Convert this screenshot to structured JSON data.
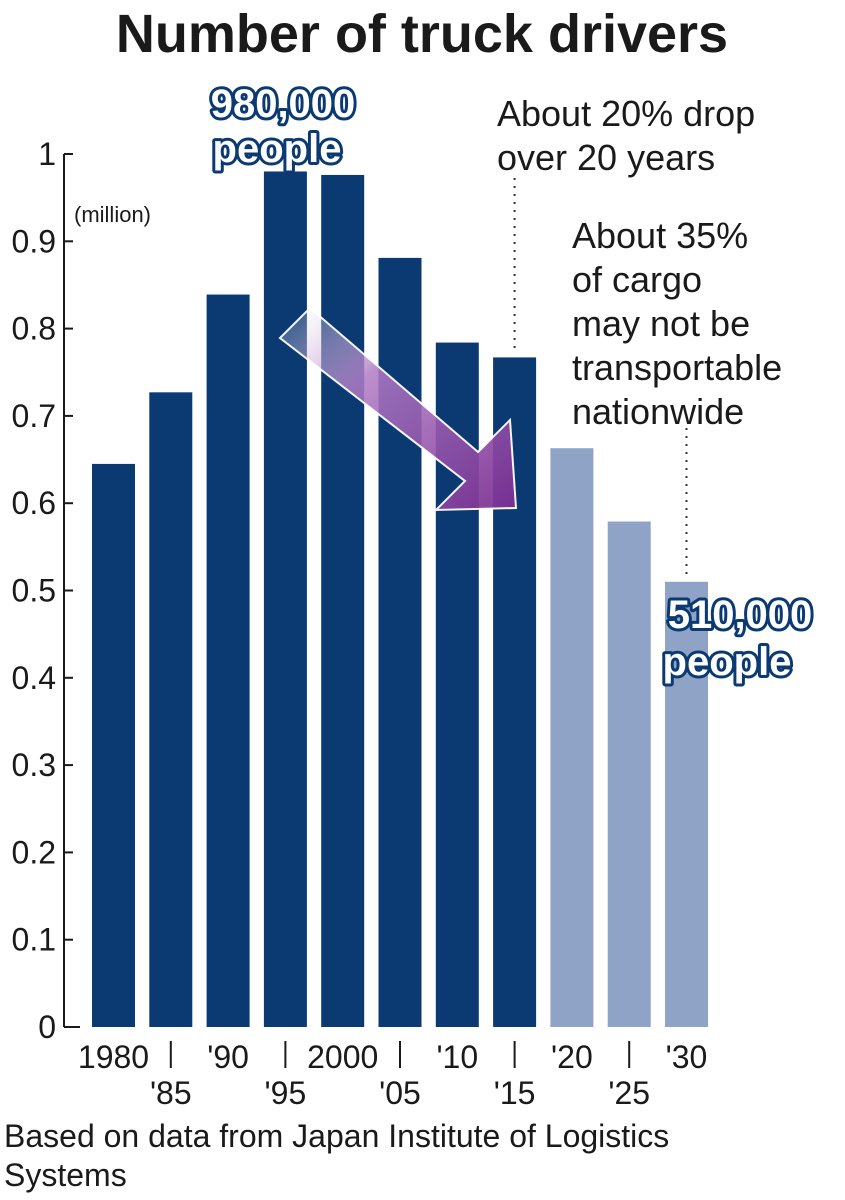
{
  "chart_data": {
    "type": "bar",
    "title": "Number of truck drivers",
    "unit_label": "(million)",
    "categories": [
      "1980",
      "'85",
      "'90",
      "'95",
      "2000",
      "'05",
      "'10",
      "'15",
      "'20",
      "'25",
      "'30"
    ],
    "values": [
      0.645,
      0.727,
      0.839,
      0.98,
      0.976,
      0.881,
      0.784,
      0.767,
      0.663,
      0.579,
      0.51
    ],
    "projected_from_index": 8,
    "ylim": [
      0,
      1
    ],
    "yticks": [
      "0",
      "0.1",
      "0.2",
      "0.3",
      "0.4",
      "0.5",
      "0.6",
      "0.7",
      "0.8",
      "0.9",
      "1"
    ],
    "grid": false,
    "colors": {
      "actual": "#0b3a73",
      "projected": "#8ea3c6",
      "arrow": "#7b3a8f"
    },
    "annotations": {
      "peak_label": [
        "980,000",
        "people"
      ],
      "end_label": [
        "510,000",
        "people"
      ],
      "drop_note": [
        "About 20% drop",
        "over 20 years"
      ],
      "cargo_note": [
        "About 35%",
        "of cargo",
        "may not be",
        "transportable",
        "nationwide"
      ]
    },
    "source": [
      "Based on data from Japan Institute of Logistics",
      "Systems"
    ]
  }
}
